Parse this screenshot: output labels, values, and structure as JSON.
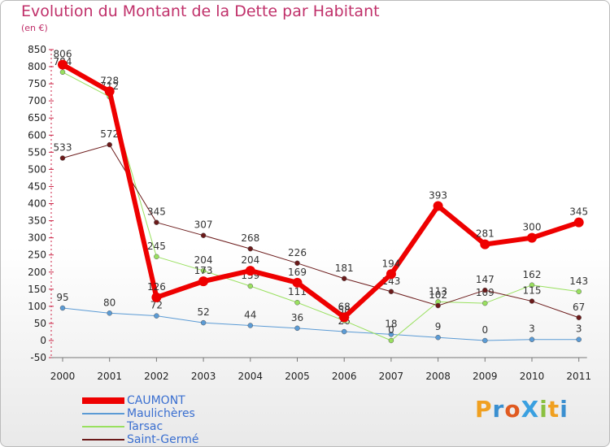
{
  "title": "Evolution du Montant de la Dette par Habitant",
  "subtitle": "(en €)",
  "logo_text": "ProXiti",
  "chart_data": {
    "type": "line",
    "title": "Evolution du Montant de la Dette par Habitant",
    "subtitle": "(en €)",
    "x": [
      "2000",
      "2001",
      "2002",
      "2003",
      "2004",
      "2005",
      "2006",
      "2007",
      "2008",
      "2009",
      "2010",
      "2011"
    ],
    "ylim": [
      -50,
      850
    ],
    "yticks": [
      -50,
      0,
      50,
      100,
      150,
      200,
      250,
      300,
      350,
      400,
      450,
      500,
      550,
      600,
      650,
      700,
      750,
      800,
      850
    ],
    "grid": false,
    "legend_position": "bottom-left",
    "series": [
      {
        "name": "Maulichères",
        "color": "#5b9bd5",
        "width": 1,
        "values": [
          95,
          80,
          72,
          52,
          44,
          36,
          26,
          18,
          9,
          0,
          3,
          3
        ]
      },
      {
        "name": "Tarsac",
        "color": "#99e05f",
        "width": 1,
        "values": [
          784,
          712,
          245,
          204,
          159,
          111,
          58,
          0,
          113,
          109,
          162,
          143
        ]
      },
      {
        "name": "Saint-Germé",
        "color": "#6b1a1a",
        "width": 1,
        "values": [
          533,
          572,
          345,
          307,
          268,
          226,
          181,
          143,
          102,
          147,
          115,
          67
        ]
      },
      {
        "name": "CAUMONT",
        "color": "#ee0000",
        "width": 6,
        "values": [
          806,
          728,
          126,
          173,
          204,
          169,
          68,
          194,
          393,
          281,
          300,
          345
        ]
      }
    ],
    "legend_order": [
      "CAUMONT",
      "Maulichères",
      "Tarsac",
      "Saint-Germé"
    ]
  }
}
